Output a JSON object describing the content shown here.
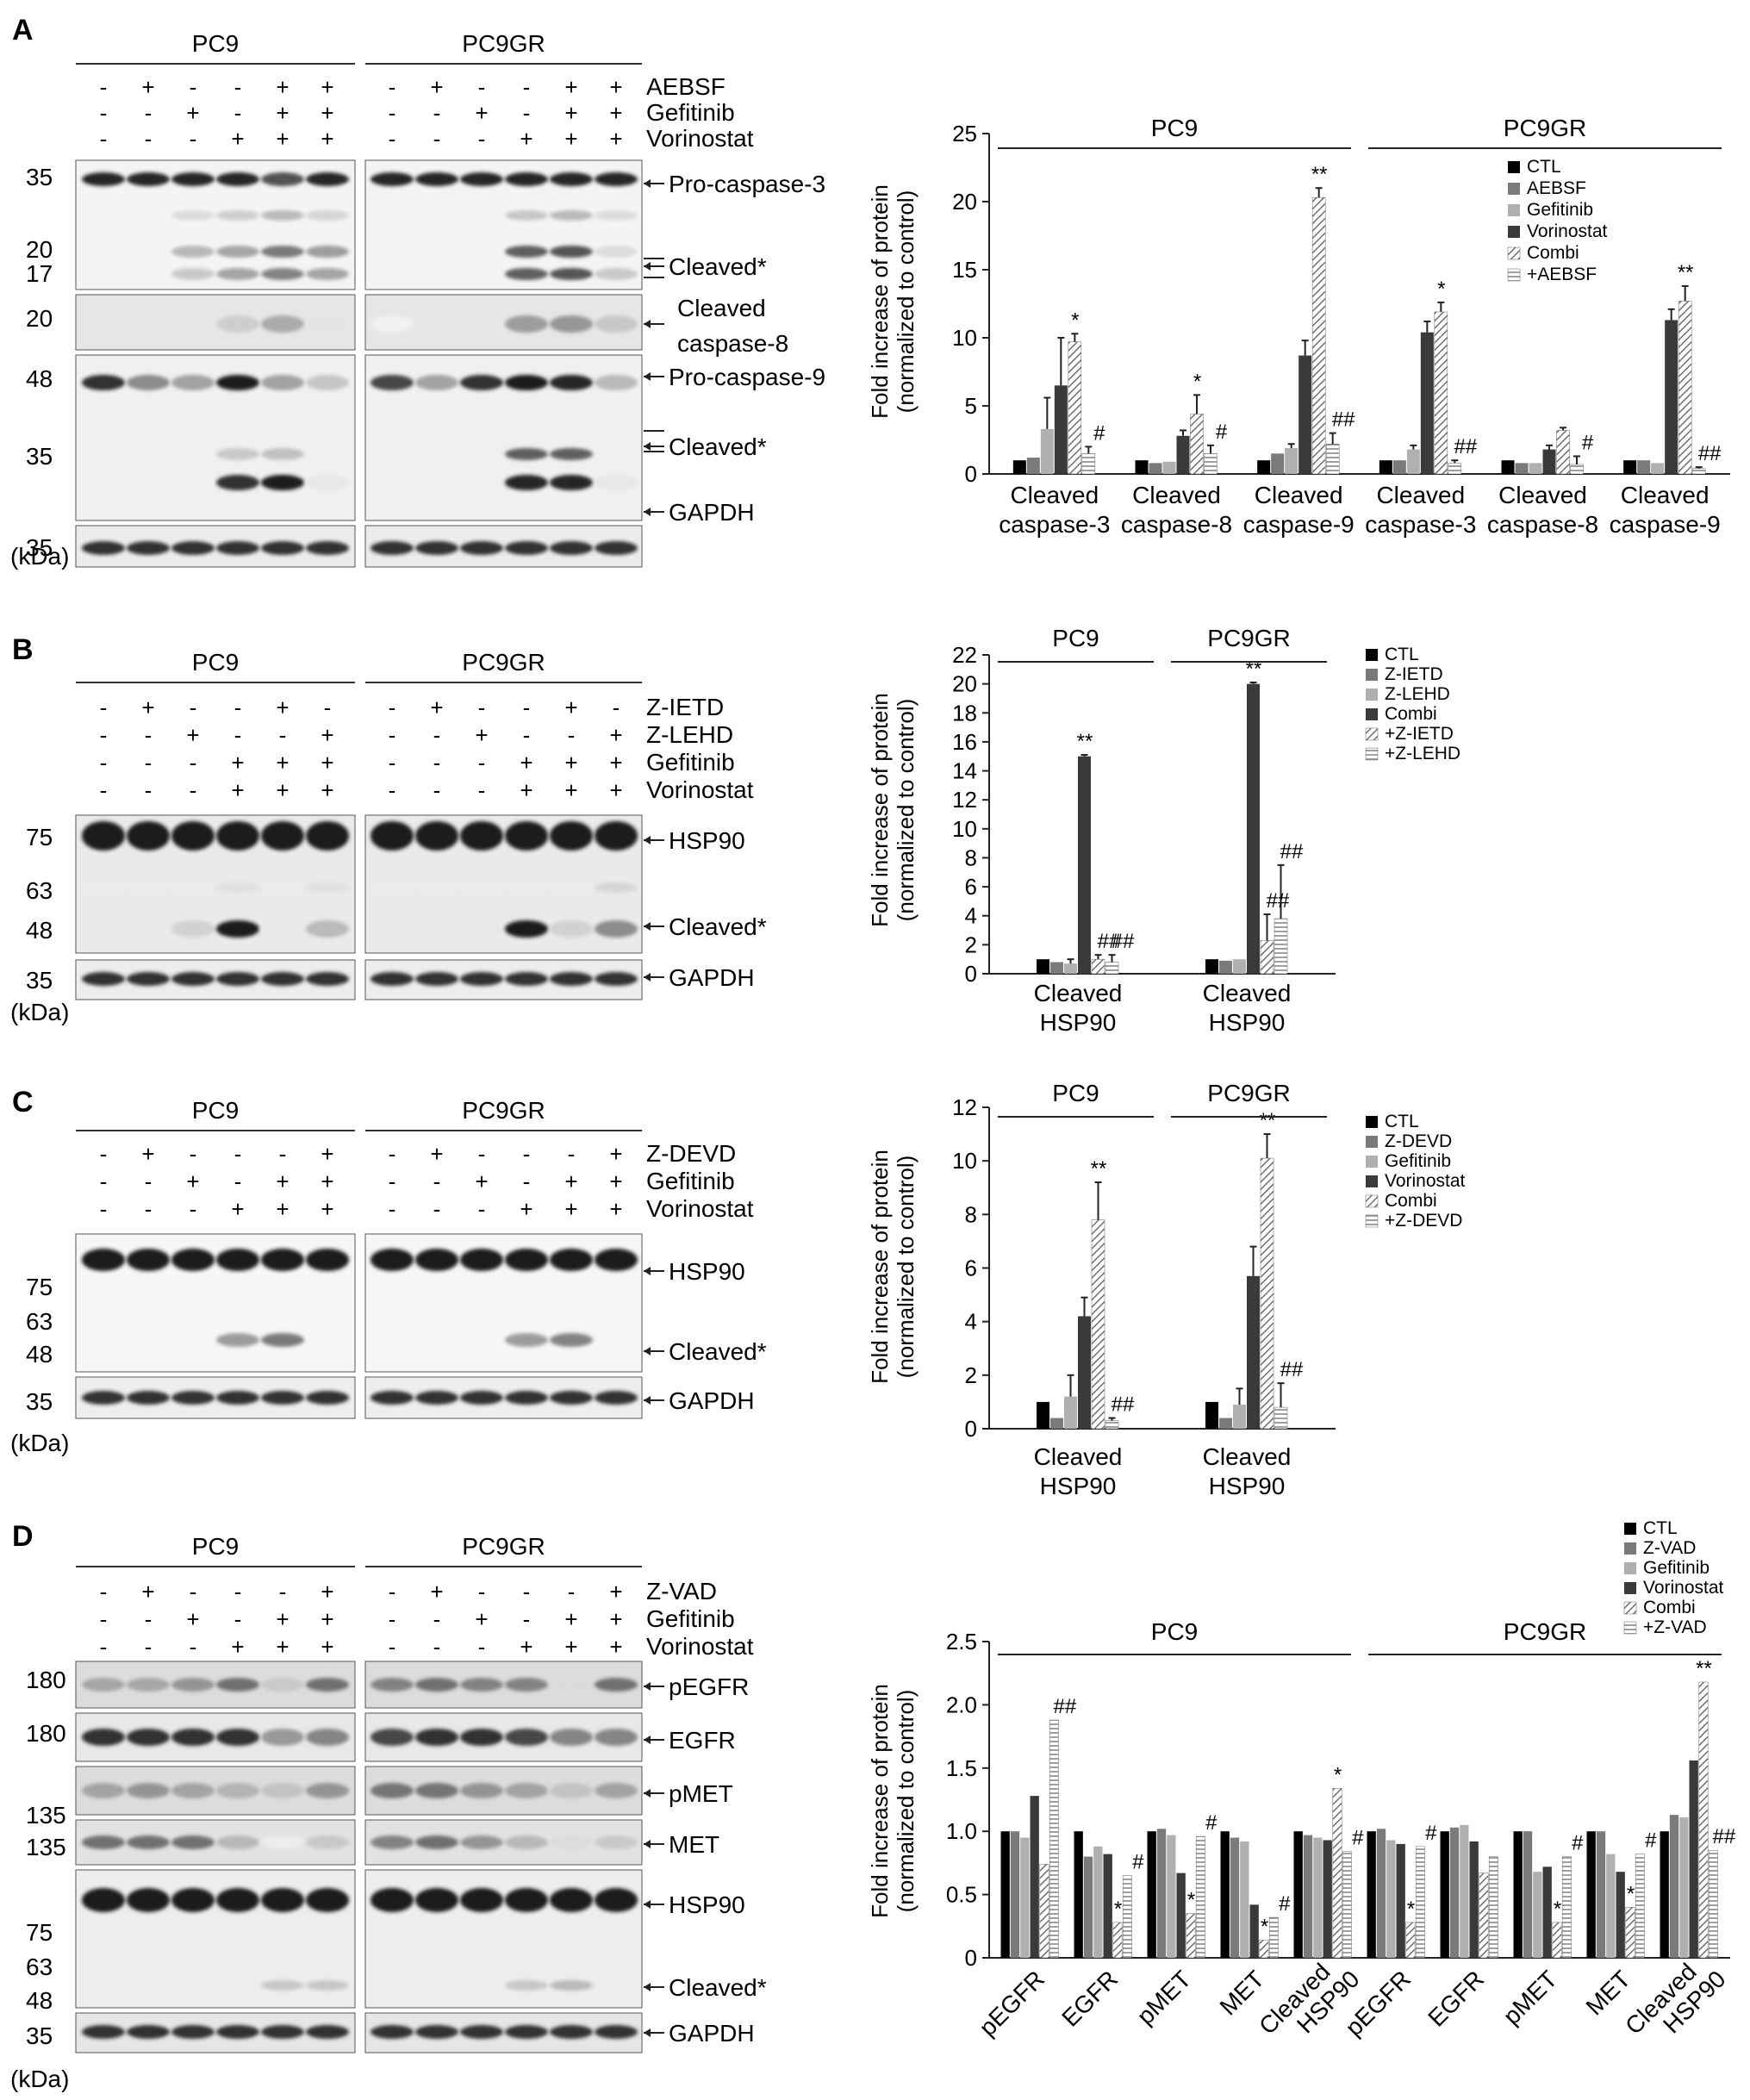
{
  "panels": [
    {
      "letter": "A",
      "blot": {
        "groups": [
          "PC9",
          "PC9GR"
        ],
        "treatments": [
          {
            "name": "AEBSF",
            "signs": [
              "-",
              "+",
              "-",
              "-",
              "+",
              "+"
            ]
          },
          {
            "name": "Gefitinib",
            "signs": [
              "-",
              "-",
              "+",
              "-",
              "+",
              "+"
            ]
          },
          {
            "name": "Vorinostat",
            "signs": [
              "-",
              "-",
              "-",
              "+",
              "+",
              "+"
            ]
          }
        ],
        "markers": [
          "35",
          "20",
          "17",
          "20",
          "48",
          "35",
          "35"
        ],
        "band_labels": [
          "Pro-caspase-3",
          "Cleaved*",
          "Cleaved",
          "caspase-8",
          "Pro-caspase-9",
          "Cleaved*",
          "GAPDH"
        ],
        "unit": "(kDa)"
      },
      "chart_data": {
        "type": "bar",
        "groups": [
          "PC9",
          "PC9GR"
        ],
        "categories": [
          "Cleaved caspase-3",
          "Cleaved caspase-8",
          "Cleaved caspase-9",
          "Cleaved caspase-3",
          "Cleaved caspase-8",
          "Cleaved caspase-9"
        ],
        "ylabel": "Fold increase of protein (normalized to control)",
        "ylim": [
          0,
          25
        ],
        "yticks": [
          "0",
          "5",
          "10",
          "15",
          "20",
          "25"
        ],
        "legend": [
          "CTL",
          "AEBSF",
          "Gefitinib",
          "Vorinostat",
          "Combi",
          "+AEBSF"
        ],
        "series": [
          {
            "name": "CTL",
            "values": [
              1,
              1,
              1,
              1,
              1,
              1
            ],
            "err": [
              0,
              0,
              0,
              0,
              0,
              0
            ]
          },
          {
            "name": "AEBSF",
            "values": [
              1.2,
              0.8,
              1.5,
              1,
              0.8,
              1
            ],
            "err": [
              0,
              0,
              0,
              0,
              0,
              0
            ]
          },
          {
            "name": "Gefitinib",
            "values": [
              3.3,
              0.9,
              1.9,
              1.8,
              0.8,
              0.8
            ],
            "err": [
              2.3,
              0,
              0.3,
              0.3,
              0,
              0
            ]
          },
          {
            "name": "Vorinostat",
            "values": [
              6.5,
              2.8,
              8.7,
              10.4,
              1.8,
              11.3
            ],
            "err": [
              3.5,
              0.4,
              1.1,
              0.8,
              0.3,
              0.8
            ]
          },
          {
            "name": "Combi",
            "values": [
              9.7,
              4.4,
              20.3,
              11.9,
              3.2,
              12.7
            ],
            "err": [
              0.6,
              1.4,
              0.7,
              0.7,
              0.2,
              1.1
            ]
          },
          {
            "name": "+AEBSF",
            "values": [
              1.5,
              1.5,
              2.2,
              0.8,
              0.7,
              0.4
            ],
            "err": [
              0.5,
              0.6,
              0.8,
              0.2,
              0.6,
              0.1
            ]
          }
        ],
        "annotations": [
          {
            "cat": 0,
            "series": 4,
            "text": "*"
          },
          {
            "cat": 0,
            "series": 5,
            "text": "#"
          },
          {
            "cat": 1,
            "series": 4,
            "text": "*"
          },
          {
            "cat": 1,
            "series": 5,
            "text": "#"
          },
          {
            "cat": 2,
            "series": 4,
            "text": "**"
          },
          {
            "cat": 2,
            "series": 5,
            "text": "##"
          },
          {
            "cat": 3,
            "series": 4,
            "text": "*"
          },
          {
            "cat": 3,
            "series": 5,
            "text": "##"
          },
          {
            "cat": 4,
            "series": 5,
            "text": "#"
          },
          {
            "cat": 5,
            "series": 4,
            "text": "**"
          },
          {
            "cat": 5,
            "series": 5,
            "text": "##"
          }
        ]
      }
    },
    {
      "letter": "B",
      "blot": {
        "groups": [
          "PC9",
          "PC9GR"
        ],
        "treatments": [
          {
            "name": "Z-IETD",
            "signs": [
              "-",
              "+",
              "-",
              "-",
              "+",
              "-"
            ]
          },
          {
            "name": "Z-LEHD",
            "signs": [
              "-",
              "-",
              "+",
              "-",
              "-",
              "+"
            ]
          },
          {
            "name": "Gefitinib",
            "signs": [
              "-",
              "-",
              "-",
              "+",
              "+",
              "+"
            ]
          },
          {
            "name": "Vorinostat",
            "signs": [
              "-",
              "-",
              "-",
              "+",
              "+",
              "+"
            ]
          }
        ],
        "markers": [
          "75",
          "63",
          "48",
          "35"
        ],
        "band_labels": [
          "HSP90",
          "Cleaved*",
          "GAPDH"
        ],
        "unit": "(kDa)"
      },
      "chart_data": {
        "type": "bar",
        "groups": [
          "PC9",
          "PC9GR"
        ],
        "categories": [
          "Cleaved HSP90",
          "Cleaved HSP90"
        ],
        "ylabel": "Fold increase of protein (normalized to control)",
        "ylim": [
          0,
          22
        ],
        "yticks": [
          "0",
          "2",
          "4",
          "6",
          "8",
          "10",
          "12",
          "14",
          "16",
          "18",
          "20",
          "22"
        ],
        "legend": [
          "CTL",
          "Z-IETD",
          "Z-LEHD",
          "Combi",
          "+Z-IETD",
          "+Z-LEHD"
        ],
        "series": [
          {
            "name": "CTL",
            "values": [
              1,
              1
            ],
            "err": [
              0,
              0
            ]
          },
          {
            "name": "Z-IETD",
            "values": [
              0.8,
              0.9
            ],
            "err": [
              0,
              0
            ]
          },
          {
            "name": "Z-LEHD",
            "values": [
              0.7,
              1
            ],
            "err": [
              0.3,
              0
            ]
          },
          {
            "name": "Combi",
            "values": [
              15,
              20
            ],
            "err": [
              0.1,
              0.1
            ]
          },
          {
            "name": "+Z-IETD",
            "values": [
              1,
              2.3
            ],
            "err": [
              0.3,
              1.8
            ]
          },
          {
            "name": "+Z-LEHD",
            "values": [
              0.8,
              3.8
            ],
            "err": [
              0.5,
              3.7
            ]
          }
        ],
        "annotations": [
          {
            "cat": 0,
            "series": 3,
            "text": "**"
          },
          {
            "cat": 0,
            "series": 4,
            "text": "##"
          },
          {
            "cat": 0,
            "series": 5,
            "text": "##"
          },
          {
            "cat": 1,
            "series": 3,
            "text": "**"
          },
          {
            "cat": 1,
            "series": 4,
            "text": "##"
          },
          {
            "cat": 1,
            "series": 5,
            "text": "##"
          }
        ]
      }
    },
    {
      "letter": "C",
      "blot": {
        "groups": [
          "PC9",
          "PC9GR"
        ],
        "treatments": [
          {
            "name": "Z-DEVD",
            "signs": [
              "-",
              "+",
              "-",
              "-",
              "-",
              "+"
            ]
          },
          {
            "name": "Gefitinib",
            "signs": [
              "-",
              "-",
              "+",
              "-",
              "+",
              "+"
            ]
          },
          {
            "name": "Vorinostat",
            "signs": [
              "-",
              "-",
              "-",
              "+",
              "+",
              "+"
            ]
          }
        ],
        "markers": [
          "75",
          "63",
          "48",
          "35"
        ],
        "band_labels": [
          "HSP90",
          "Cleaved*",
          "GAPDH"
        ],
        "unit": "(kDa)"
      },
      "chart_data": {
        "type": "bar",
        "groups": [
          "PC9",
          "PC9GR"
        ],
        "categories": [
          "Cleaved HSP90",
          "Cleaved HSP90"
        ],
        "ylabel": "Fold increase of protein (normalized to control)",
        "ylim": [
          0,
          12
        ],
        "yticks": [
          "0",
          "2",
          "4",
          "6",
          "8",
          "10",
          "12"
        ],
        "legend": [
          "CTL",
          "Z-DEVD",
          "Gefitinib",
          "Vorinostat",
          "Combi",
          "+Z-DEVD"
        ],
        "series": [
          {
            "name": "CTL",
            "values": [
              1,
              1
            ],
            "err": [
              0,
              0
            ]
          },
          {
            "name": "Z-DEVD",
            "values": [
              0.4,
              0.4
            ],
            "err": [
              0,
              0
            ]
          },
          {
            "name": "Gefitinib",
            "values": [
              1.2,
              0.9
            ],
            "err": [
              0.8,
              0.6
            ]
          },
          {
            "name": "Vorinostat",
            "values": [
              4.2,
              5.7
            ],
            "err": [
              0.7,
              1.1
            ]
          },
          {
            "name": "Combi",
            "values": [
              7.8,
              10.1
            ],
            "err": [
              1.4,
              0.9
            ]
          },
          {
            "name": "+Z-DEVD",
            "values": [
              0.3,
              0.8
            ],
            "err": [
              0.1,
              0.9
            ]
          }
        ],
        "annotations": [
          {
            "cat": 0,
            "series": 4,
            "text": "**"
          },
          {
            "cat": 0,
            "series": 5,
            "text": "##"
          },
          {
            "cat": 1,
            "series": 4,
            "text": "**"
          },
          {
            "cat": 1,
            "series": 5,
            "text": "##"
          }
        ]
      }
    },
    {
      "letter": "D",
      "blot": {
        "groups": [
          "PC9",
          "PC9GR"
        ],
        "treatments": [
          {
            "name": "Z-VAD",
            "signs": [
              "-",
              "+",
              "-",
              "-",
              "-",
              "+"
            ]
          },
          {
            "name": "Gefitinib",
            "signs": [
              "-",
              "-",
              "+",
              "-",
              "+",
              "+"
            ]
          },
          {
            "name": "Vorinostat",
            "signs": [
              "-",
              "-",
              "-",
              "+",
              "+",
              "+"
            ]
          }
        ],
        "markers": [
          "180",
          "180",
          "135",
          "135",
          "75",
          "63",
          "48",
          "35"
        ],
        "band_labels": [
          "pEGFR",
          "EGFR",
          "pMET",
          "MET",
          "HSP90",
          "Cleaved*",
          "GAPDH"
        ],
        "unit": "(kDa)"
      },
      "chart_data": {
        "type": "bar",
        "groups": [
          "PC9",
          "PC9GR"
        ],
        "categories": [
          "pEGFR",
          "EGFR",
          "pMET",
          "MET",
          "Cleaved HSP90",
          "pEGFR",
          "EGFR",
          "pMET",
          "MET",
          "Cleaved HSP90"
        ],
        "ylabel": "Fold increase of protein (normalized to control)",
        "ylim": [
          0,
          2.5
        ],
        "yticks": [
          "0",
          "0.5",
          "1.0",
          "1.5",
          "2.0",
          "2.5"
        ],
        "legend": [
          "CTL",
          "Z-VAD",
          "Gefitinib",
          "Vorinostat",
          "Combi",
          "+Z-VAD"
        ],
        "series": [
          {
            "name": "CTL",
            "values": [
              1,
              1,
              1,
              1,
              1,
              1,
              1,
              1,
              1,
              1
            ],
            "err": [
              0,
              0,
              0,
              0,
              0,
              0,
              0,
              0,
              0,
              0
            ]
          },
          {
            "name": "Z-VAD",
            "values": [
              1,
              0.8,
              1.02,
              0.95,
              0.97,
              1.02,
              1.03,
              1,
              1,
              1.13
            ]
          },
          {
            "name": "Gefitinib",
            "values": [
              0.95,
              0.88,
              0.97,
              0.92,
              0.95,
              0.93,
              1.05,
              0.68,
              0.82,
              1.11
            ]
          },
          {
            "name": "Vorinostat",
            "values": [
              1.28,
              0.82,
              0.67,
              0.42,
              0.93,
              0.9,
              0.92,
              0.72,
              0.68,
              1.56
            ]
          },
          {
            "name": "Combi",
            "values": [
              0.74,
              0.28,
              0.35,
              0.14,
              1.34,
              0.28,
              0.67,
              0.28,
              0.4,
              2.18
            ]
          },
          {
            "name": "+Z-VAD",
            "values": [
              1.88,
              0.65,
              0.96,
              0.32,
              0.84,
              0.88,
              0.8,
              0.8,
              0.82,
              0.85
            ]
          }
        ],
        "annotations": [
          {
            "cat": 0,
            "series": 5,
            "text": "##"
          },
          {
            "cat": 1,
            "series": 4,
            "text": "*"
          },
          {
            "cat": 1,
            "series": 5,
            "text": "#"
          },
          {
            "cat": 2,
            "series": 4,
            "text": "*"
          },
          {
            "cat": 2,
            "series": 5,
            "text": "#"
          },
          {
            "cat": 3,
            "series": 4,
            "text": "*"
          },
          {
            "cat": 3,
            "series": 5,
            "text": "#"
          },
          {
            "cat": 4,
            "series": 4,
            "text": "*"
          },
          {
            "cat": 4,
            "series": 5,
            "text": "#"
          },
          {
            "cat": 5,
            "series": 4,
            "text": "*"
          },
          {
            "cat": 5,
            "series": 5,
            "text": "#"
          },
          {
            "cat": 7,
            "series": 4,
            "text": "*"
          },
          {
            "cat": 7,
            "series": 5,
            "text": "#"
          },
          {
            "cat": 8,
            "series": 4,
            "text": "*"
          },
          {
            "cat": 8,
            "series": 5,
            "text": "#"
          },
          {
            "cat": 9,
            "series": 4,
            "text": "**"
          },
          {
            "cat": 9,
            "series": 5,
            "text": "##"
          }
        ]
      }
    }
  ]
}
